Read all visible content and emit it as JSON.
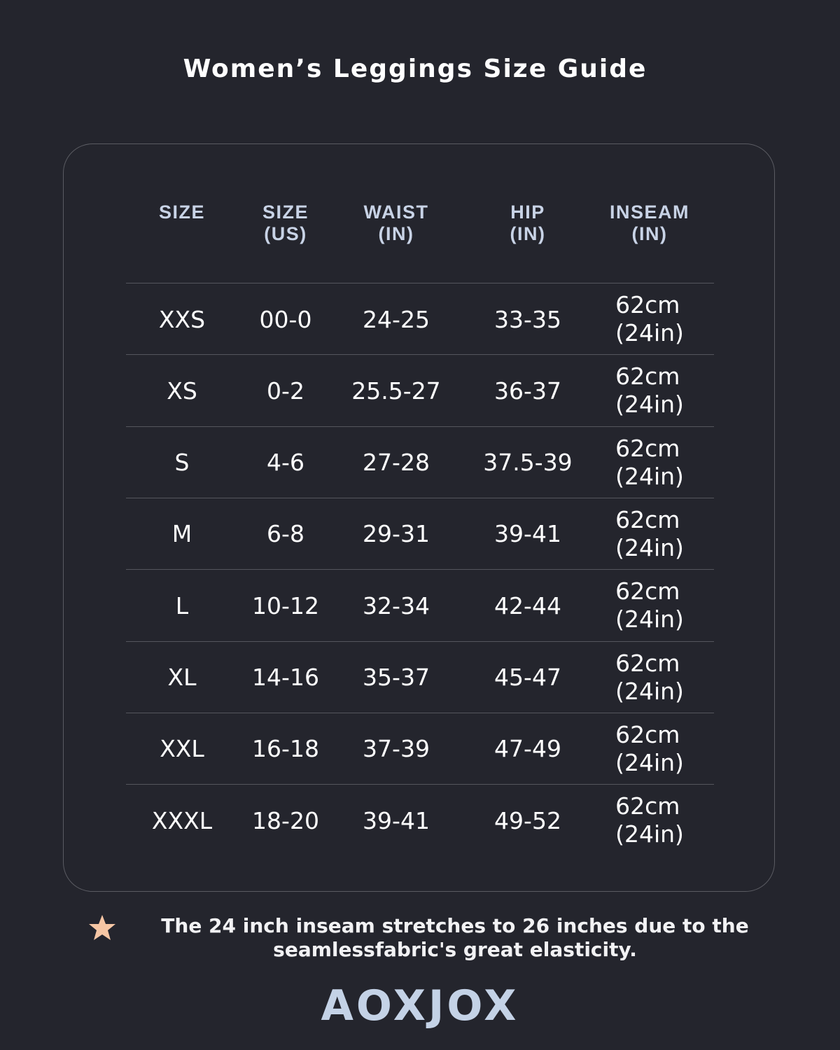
{
  "title": "Women’s Leggings Size Guide",
  "table": {
    "headers": [
      {
        "line1": "SIZE",
        "line2": ""
      },
      {
        "line1": "SIZE",
        "line2": "(US)"
      },
      {
        "line1": "WAIST",
        "line2": "(IN)"
      },
      {
        "line1": "HIP",
        "line2": "(IN)"
      },
      {
        "line1": "INSEAM",
        "line2": "(IN)"
      }
    ],
    "rows": [
      {
        "size": "XXS",
        "us": "00-0",
        "waist": "24-25",
        "hip": "33-35",
        "inseam_cm": "62cm",
        "inseam_in": "(24in)"
      },
      {
        "size": "XS",
        "us": "0-2",
        "waist": "25.5-27",
        "hip": "36-37",
        "inseam_cm": "62cm",
        "inseam_in": "(24in)"
      },
      {
        "size": "S",
        "us": "4-6",
        "waist": "27-28",
        "hip": "37.5-39",
        "inseam_cm": "62cm",
        "inseam_in": "(24in)"
      },
      {
        "size": "M",
        "us": "6-8",
        "waist": "29-31",
        "hip": "39-41",
        "inseam_cm": "62cm",
        "inseam_in": "(24in)"
      },
      {
        "size": "L",
        "us": "10-12",
        "waist": "32-34",
        "hip": "42-44",
        "inseam_cm": "62cm",
        "inseam_in": "(24in)"
      },
      {
        "size": "XL",
        "us": "14-16",
        "waist": "35-37",
        "hip": "45-47",
        "inseam_cm": "62cm",
        "inseam_in": "(24in)"
      },
      {
        "size": "XXL",
        "us": "16-18",
        "waist": "37-39",
        "hip": "47-49",
        "inseam_cm": "62cm",
        "inseam_in": "(24in)"
      },
      {
        "size": "XXXL",
        "us": "18-20",
        "waist": "39-41",
        "hip": "49-52",
        "inseam_cm": "62cm",
        "inseam_in": "(24in)"
      }
    ]
  },
  "note": {
    "icon": "star-icon",
    "line1": "The 24 inch inseam stretches to 26 inches due to the",
    "line2": "seamlessfabric's great elasticity."
  },
  "brand": "AOXJOX",
  "colors": {
    "background": "#24252d",
    "header": "#c8d3e6",
    "star": "#f6c6a4",
    "logo": "#c4d2e6"
  }
}
